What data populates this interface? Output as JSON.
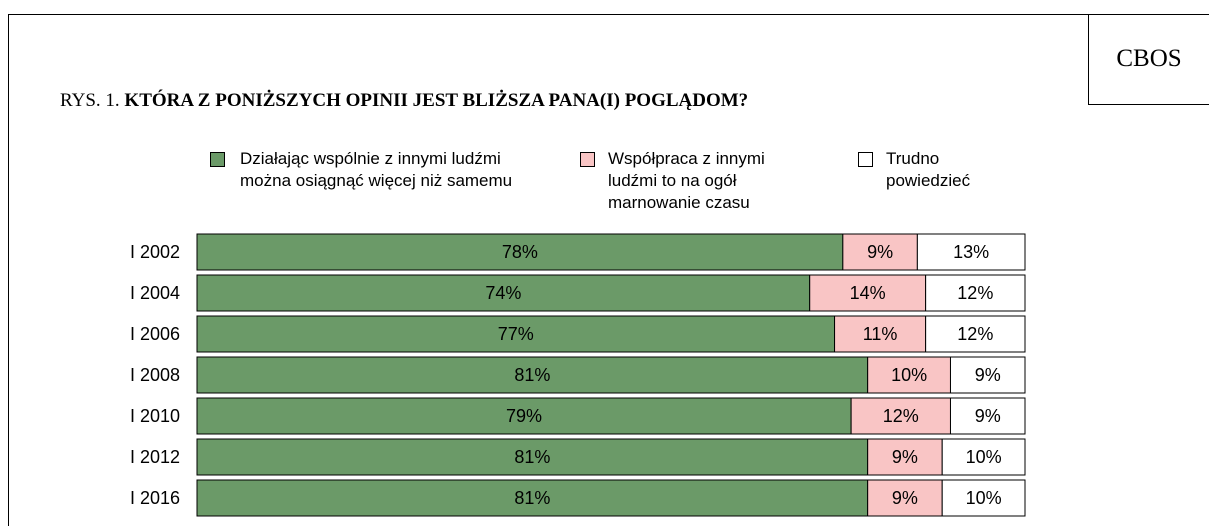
{
  "chart_data": {
    "type": "stacked-bar-horizontal",
    "source": "CBOS",
    "figure_label": "RYS. 1.",
    "title": "KTÓRA Z PONIŻSZYCH OPINII JEST BLIŻSZA PANA(I) POGLĄDOM?",
    "categories": [
      "I 2002",
      "I 2004",
      "I 2006",
      "I 2008",
      "I 2010",
      "I 2012",
      "I 2016"
    ],
    "xlim": [
      0,
      100
    ],
    "series": [
      {
        "name": "Działając wspólnie z innymi ludźmi można osiągnąć więcej niż samemu",
        "color": "#6b9a68",
        "values": [
          78,
          74,
          77,
          81,
          79,
          81,
          81
        ],
        "value_labels": [
          "78%",
          "74%",
          "77%",
          "81%",
          "79%",
          "81%",
          "81%"
        ]
      },
      {
        "name": "Współpraca z innymi ludźmi to na ogół marnowanie czasu",
        "color": "#f9c5c5",
        "values": [
          9,
          14,
          11,
          10,
          12,
          9,
          9
        ],
        "value_labels": [
          "9%",
          "14%",
          "11%",
          "10%",
          "12%",
          "9%",
          "9%"
        ]
      },
      {
        "name": "Trudno powiedzieć",
        "color": "#ffffff",
        "values": [
          13,
          12,
          12,
          9,
          9,
          10,
          10
        ],
        "value_labels": [
          "13%",
          "12%",
          "12%",
          "9%",
          "9%",
          "10%",
          "10%"
        ]
      }
    ]
  }
}
